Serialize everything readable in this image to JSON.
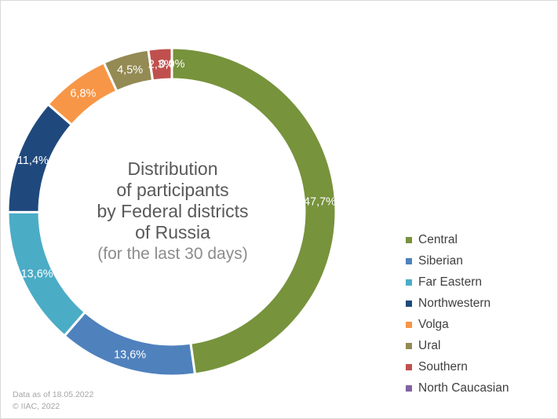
{
  "chart_data": {
    "type": "pie",
    "title": [
      "Distribution",
      "of participants",
      "by Federal districts",
      "of Russia"
    ],
    "subtitle": "(for the last 30 days)",
    "legend_position": "right",
    "series": [
      {
        "name": "Central",
        "value": 47.7,
        "label": "47,7%",
        "color": "#77933c"
      },
      {
        "name": "Siberian",
        "value": 13.6,
        "label": "13,6%",
        "color": "#4f81bd"
      },
      {
        "name": "Far Eastern",
        "value": 13.6,
        "label": "13,6%",
        "color": "#4bacc6"
      },
      {
        "name": "Northwestern",
        "value": 11.4,
        "label": "11,4%",
        "color": "#1f497d"
      },
      {
        "name": "Volga",
        "value": 6.8,
        "label": "6,8%",
        "color": "#f79646"
      },
      {
        "name": "Ural",
        "value": 4.5,
        "label": "4,5%",
        "color": "#948a54"
      },
      {
        "name": "Southern",
        "value": 2.3,
        "label": "2,3%",
        "color": "#c0504d"
      },
      {
        "name": "North Caucasian",
        "value": 0.0,
        "label": "0,0%",
        "color": "#8064a2"
      }
    ]
  },
  "footer": {
    "line1": "Data as of 18.05.2022",
    "line2": "© IIAC, 2022"
  }
}
